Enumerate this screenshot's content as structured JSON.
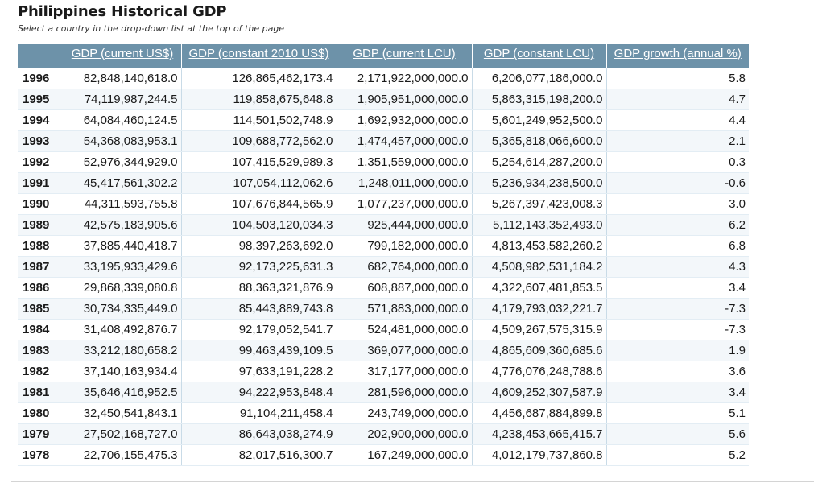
{
  "page": {
    "title": "Philippines Historical GDP",
    "subtitle": "Select a country in the drop-down list at the top of the page"
  },
  "table": {
    "headers": [
      "",
      "GDP (current US$)",
      "GDP (constant 2010 US$)",
      "GDP (current LCU)",
      "GDP (constant LCU)",
      "GDP growth (annual %)"
    ],
    "rows": [
      [
        "1996",
        "82,848,140,618.0",
        "126,865,462,173.4",
        "2,171,922,000,000.0",
        "6,206,077,186,000.0",
        "5.8"
      ],
      [
        "1995",
        "74,119,987,244.5",
        "119,858,675,648.8",
        "1,905,951,000,000.0",
        "5,863,315,198,200.0",
        "4.7"
      ],
      [
        "1994",
        "64,084,460,124.5",
        "114,501,502,748.9",
        "1,692,932,000,000.0",
        "5,601,249,952,500.0",
        "4.4"
      ],
      [
        "1993",
        "54,368,083,953.1",
        "109,688,772,562.0",
        "1,474,457,000,000.0",
        "5,365,818,066,600.0",
        "2.1"
      ],
      [
        "1992",
        "52,976,344,929.0",
        "107,415,529,989.3",
        "1,351,559,000,000.0",
        "5,254,614,287,200.0",
        "0.3"
      ],
      [
        "1991",
        "45,417,561,302.2",
        "107,054,112,062.6",
        "1,248,011,000,000.0",
        "5,236,934,238,500.0",
        "-0.6"
      ],
      [
        "1990",
        "44,311,593,755.8",
        "107,676,844,565.9",
        "1,077,237,000,000.0",
        "5,267,397,423,008.3",
        "3.0"
      ],
      [
        "1989",
        "42,575,183,905.6",
        "104,503,120,034.3",
        "925,444,000,000.0",
        "5,112,143,352,493.0",
        "6.2"
      ],
      [
        "1988",
        "37,885,440,418.7",
        "98,397,263,692.0",
        "799,182,000,000.0",
        "4,813,453,582,260.2",
        "6.8"
      ],
      [
        "1987",
        "33,195,933,429.6",
        "92,173,225,631.3",
        "682,764,000,000.0",
        "4,508,982,531,184.2",
        "4.3"
      ],
      [
        "1986",
        "29,868,339,080.8",
        "88,363,321,876.9",
        "608,887,000,000.0",
        "4,322,607,481,853.5",
        "3.4"
      ],
      [
        "1985",
        "30,734,335,449.0",
        "85,443,889,743.8",
        "571,883,000,000.0",
        "4,179,793,032,221.7",
        "-7.3"
      ],
      [
        "1984",
        "31,408,492,876.7",
        "92,179,052,541.7",
        "524,481,000,000.0",
        "4,509,267,575,315.9",
        "-7.3"
      ],
      [
        "1983",
        "33,212,180,658.2",
        "99,463,439,109.5",
        "369,077,000,000.0",
        "4,865,609,360,685.6",
        "1.9"
      ],
      [
        "1982",
        "37,140,163,934.4",
        "97,633,191,228.2",
        "317,177,000,000.0",
        "4,776,076,248,788.6",
        "3.6"
      ],
      [
        "1981",
        "35,646,416,952.5",
        "94,222,953,848.4",
        "281,596,000,000.0",
        "4,609,252,307,587.9",
        "3.4"
      ],
      [
        "1980",
        "32,450,541,843.1",
        "91,104,211,458.4",
        "243,749,000,000.0",
        "4,456,687,884,899.8",
        "5.1"
      ],
      [
        "1979",
        "27,502,168,727.0",
        "86,643,038,274.9",
        "202,900,000,000.0",
        "4,238,453,665,415.7",
        "5.6"
      ],
      [
        "1978",
        "22,706,155,475.3",
        "82,017,516,300.7",
        "167,249,000,000.0",
        "4,012,179,737,860.8",
        "5.2"
      ]
    ]
  }
}
